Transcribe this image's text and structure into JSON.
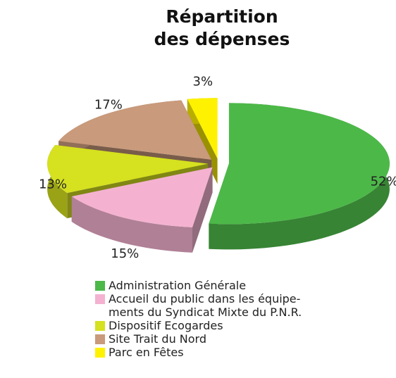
{
  "chart_data": {
    "type": "pie",
    "title": "Répartition\ndes dépenses",
    "categories": [
      "Administration Générale",
      "Accueil du public dans les équipe-\nments du Syndicat Mixte du P.N.R.",
      "Dispositif Ecogardes",
      "Site Trait du Nord",
      "Parc en Fêtes"
    ],
    "values": [
      52,
      15,
      13,
      17,
      3
    ],
    "value_labels": [
      "52%",
      "15%",
      "13%",
      "17%",
      "3%"
    ],
    "colors": [
      "#4cb848",
      "#f4b2d0",
      "#d6e11f",
      "#c99a7b",
      "#fff200"
    ]
  }
}
